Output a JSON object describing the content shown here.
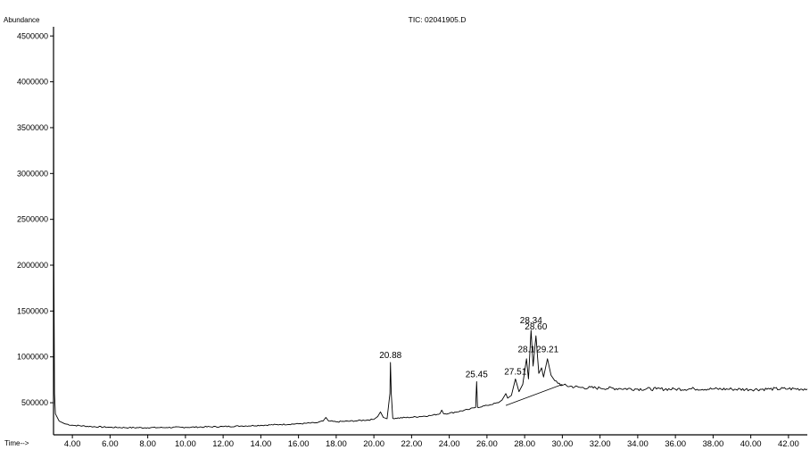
{
  "chart_data": {
    "type": "line",
    "title": "TIC: 02041905.D",
    "ylabel": "Abundance",
    "xlabel": "Time-->",
    "x_ticks": [
      "4.00",
      "6.00",
      "8.00",
      "10.00",
      "12.00",
      "14.00",
      "16.00",
      "18.00",
      "20.00",
      "22.00",
      "24.00",
      "26.00",
      "28.00",
      "30.00",
      "32.00",
      "34.00",
      "36.00",
      "38.00",
      "40.00",
      "42.00"
    ],
    "y_ticks": [
      "500000",
      "1000000",
      "1500000",
      "2000000",
      "2500000",
      "3000000",
      "3500000",
      "4000000",
      "4500000"
    ],
    "xlim": [
      3.0,
      43.0
    ],
    "ylim": [
      150000,
      4600000
    ],
    "grid": false,
    "peak_labels": [
      {
        "text": "20.88",
        "x": 20.88,
        "y": 940000
      },
      {
        "text": "25.45",
        "x": 25.45,
        "y": 730000
      },
      {
        "text": "27.51",
        "x": 27.51,
        "y": 760000
      },
      {
        "text": "28.1",
        "x": 28.1,
        "y": 1000000
      },
      {
        "text": "28.34",
        "x": 28.34,
        "y": 1320000
      },
      {
        "text": "28.60",
        "x": 28.6,
        "y": 1250000
      },
      {
        "text": "29.21",
        "x": 29.21,
        "y": 1000000
      }
    ],
    "series": [
      {
        "values": [
          [
            3.0,
            4550000
          ],
          [
            3.02,
            2000000
          ],
          [
            3.05,
            600000
          ],
          [
            3.1,
            380000
          ],
          [
            3.3,
            300000
          ],
          [
            3.6,
            270000
          ],
          [
            4.0,
            255000
          ],
          [
            5.0,
            240000
          ],
          [
            6.0,
            232000
          ],
          [
            7.0,
            228000
          ],
          [
            8.0,
            228000
          ],
          [
            9.0,
            230000
          ],
          [
            10.0,
            232000
          ],
          [
            11.0,
            236000
          ],
          [
            12.0,
            240000
          ],
          [
            13.0,
            246000
          ],
          [
            14.0,
            254000
          ],
          [
            15.0,
            262000
          ],
          [
            16.0,
            270000
          ],
          [
            17.0,
            282000
          ],
          [
            17.3,
            300000
          ],
          [
            17.45,
            340000
          ],
          [
            17.6,
            300000
          ],
          [
            18.0,
            292000
          ],
          [
            19.0,
            302000
          ],
          [
            20.0,
            318000
          ],
          [
            20.2,
            350000
          ],
          [
            20.35,
            400000
          ],
          [
            20.5,
            340000
          ],
          [
            20.7,
            325000
          ],
          [
            20.85,
            600000
          ],
          [
            20.88,
            940000
          ],
          [
            20.92,
            600000
          ],
          [
            21.0,
            330000
          ],
          [
            22.0,
            342000
          ],
          [
            23.0,
            360000
          ],
          [
            23.5,
            380000
          ],
          [
            23.6,
            420000
          ],
          [
            23.7,
            380000
          ],
          [
            24.0,
            385000
          ],
          [
            25.0,
            425000
          ],
          [
            25.4,
            450000
          ],
          [
            25.45,
            730000
          ],
          [
            25.5,
            450000
          ],
          [
            26.0,
            470000
          ],
          [
            26.6,
            500000
          ],
          [
            26.8,
            530000
          ],
          [
            27.0,
            600000
          ],
          [
            27.1,
            550000
          ],
          [
            27.3,
            580000
          ],
          [
            27.51,
            760000
          ],
          [
            27.7,
            620000
          ],
          [
            27.9,
            700000
          ],
          [
            28.1,
            980000
          ],
          [
            28.2,
            760000
          ],
          [
            28.34,
            1290000
          ],
          [
            28.45,
            900000
          ],
          [
            28.6,
            1230000
          ],
          [
            28.75,
            820000
          ],
          [
            28.9,
            880000
          ],
          [
            29.0,
            780000
          ],
          [
            29.21,
            980000
          ],
          [
            29.4,
            800000
          ],
          [
            29.6,
            740000
          ],
          [
            30.0,
            690000
          ],
          [
            31.0,
            665000
          ],
          [
            32.0,
            660000
          ],
          [
            33.0,
            655000
          ],
          [
            34.0,
            650000
          ],
          [
            35.0,
            650000
          ],
          [
            36.0,
            648000
          ],
          [
            37.0,
            652000
          ],
          [
            38.0,
            650000
          ],
          [
            39.0,
            648000
          ],
          [
            40.0,
            645000
          ],
          [
            41.0,
            650000
          ],
          [
            42.0,
            652000
          ],
          [
            43.0,
            650000
          ]
        ]
      }
    ]
  }
}
